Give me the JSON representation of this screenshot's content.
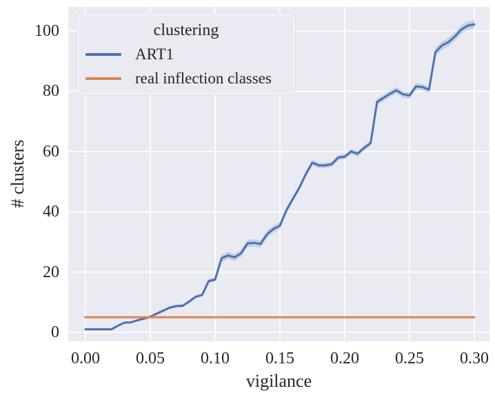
{
  "figure": {
    "background": "#ffffff",
    "axes_background": "#eaeaf2",
    "grid_color": "#ffffff",
    "text_color": "#262626"
  },
  "legend": {
    "title": "clustering",
    "position": "upper left",
    "items": [
      {
        "label": "ART1",
        "color": "#4c72b0"
      },
      {
        "label": "real inflection classes",
        "color": "#dd8452"
      }
    ]
  },
  "chart_data": {
    "type": "line",
    "title": "",
    "xlabel": "vigilance",
    "ylabel": "# clusters",
    "grid": true,
    "xlim": [
      -0.015,
      0.315
    ],
    "ylim": [
      -4,
      107
    ],
    "x_tick_labels": [
      "0.00",
      "0.05",
      "0.10",
      "0.15",
      "0.20",
      "0.25",
      "0.30"
    ],
    "x_tick_values": [
      0,
      0.05,
      0.1,
      0.15,
      0.2,
      0.25,
      0.3
    ],
    "y_tick_labels": [
      "0",
      "20",
      "40",
      "60",
      "80",
      "100"
    ],
    "y_tick_values": [
      0,
      20,
      40,
      60,
      80,
      100
    ],
    "x": [
      0,
      0.005,
      0.01,
      0.015,
      0.02,
      0.025,
      0.03,
      0.035,
      0.04,
      0.045,
      0.05,
      0.055,
      0.06,
      0.065,
      0.07,
      0.075,
      0.08,
      0.085,
      0.09,
      0.095,
      0.1,
      0.105,
      0.11,
      0.115,
      0.12,
      0.125,
      0.13,
      0.135,
      0.14,
      0.145,
      0.15,
      0.155,
      0.16,
      0.165,
      0.17,
      0.175,
      0.18,
      0.185,
      0.19,
      0.195,
      0.2,
      0.205,
      0.21,
      0.215,
      0.22,
      0.225,
      0.23,
      0.235,
      0.24,
      0.245,
      0.25,
      0.255,
      0.26,
      0.265,
      0.27,
      0.275,
      0.28,
      0.285,
      0.29,
      0.295,
      0.3
    ],
    "series": [
      {
        "name": "ART1",
        "color": "#4c72b0",
        "values": [
          1,
          1,
          1,
          1,
          1,
          2.2,
          3.2,
          3.3,
          4,
          4.5,
          5.2,
          6.2,
          7.2,
          8.2,
          8.7,
          8.8,
          10.2,
          11.8,
          12.4,
          17,
          17.5,
          24.6,
          25.5,
          24.9,
          26.2,
          29.5,
          29.7,
          29.3,
          32.5,
          34.3,
          35.4,
          40.5,
          44.3,
          48,
          52.5,
          56.3,
          55.4,
          55.4,
          55.8,
          58,
          58.3,
          60,
          59.3,
          61.2,
          62.8,
          76.5,
          77.8,
          79.2,
          80.3,
          79,
          78.6,
          81.6,
          81.4,
          80.5,
          93,
          95.2,
          96.3,
          98.2,
          100.5,
          101.8,
          102.2
        ],
        "ci_halfwidth": [
          0,
          0,
          0,
          0,
          0,
          0,
          0,
          0,
          0,
          0,
          0,
          0.5,
          0.5,
          0.5,
          0.5,
          0.5,
          0.5,
          0.5,
          0.5,
          0.7,
          0.7,
          1.2,
          1.2,
          1.2,
          1.2,
          1.2,
          1.2,
          1.2,
          1.2,
          1.2,
          1.2,
          0.9,
          0.9,
          0.9,
          0.9,
          0.9,
          0.9,
          0.9,
          0.9,
          0.9,
          0.9,
          0.9,
          0.9,
          0.9,
          0.9,
          1.1,
          1.1,
          1.1,
          1.1,
          1.1,
          1.1,
          1.1,
          1.1,
          1.1,
          1.4,
          1.4,
          1.4,
          1.4,
          1.4,
          1.4,
          1.4
        ]
      },
      {
        "name": "real inflection classes",
        "color": "#dd8452",
        "constant_value": 5
      }
    ]
  }
}
